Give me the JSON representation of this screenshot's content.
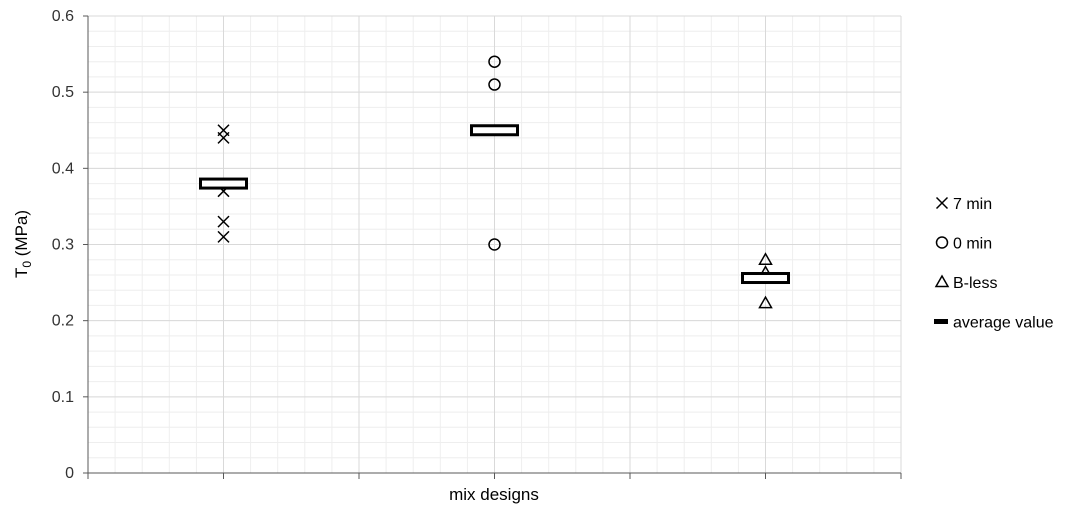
{
  "chart_data": {
    "type": "scatter",
    "xlabel": "mix designs",
    "ylabel_main": "T",
    "ylabel_sub": "0",
    "ylabel_rest": " (MPa)",
    "ylim": [
      0,
      0.6
    ],
    "yticks": [
      0,
      0.1,
      0.2,
      0.3,
      0.4,
      0.5,
      0.6
    ],
    "ytick_labels": [
      "0",
      "0.1",
      "0.2",
      "0.3",
      "0.4",
      "0.5",
      "0.6"
    ],
    "x_positions": [
      1,
      2,
      3
    ],
    "xlim": [
      0.5,
      3.5
    ],
    "grid": true,
    "legend_position": "right",
    "series": [
      {
        "name": "7 min",
        "marker": "x",
        "x": [
          1,
          1,
          1,
          1,
          1
        ],
        "y": [
          0.45,
          0.44,
          0.37,
          0.33,
          0.31
        ]
      },
      {
        "name": "0 min",
        "marker": "circle",
        "x": [
          2,
          2,
          2
        ],
        "y": [
          0.54,
          0.51,
          0.3
        ]
      },
      {
        "name": "B-less",
        "marker": "triangle",
        "x": [
          3,
          3,
          3
        ],
        "y": [
          0.28,
          0.263,
          0.223
        ]
      },
      {
        "name": "average value",
        "marker": "bar",
        "x": [
          1,
          2,
          3
        ],
        "y": [
          0.38,
          0.45,
          0.256
        ]
      }
    ]
  },
  "colors": {
    "marker": "#000000",
    "grid_major": "#d9d9d9",
    "grid_minor": "#eeeeee",
    "axis": "#595959"
  }
}
